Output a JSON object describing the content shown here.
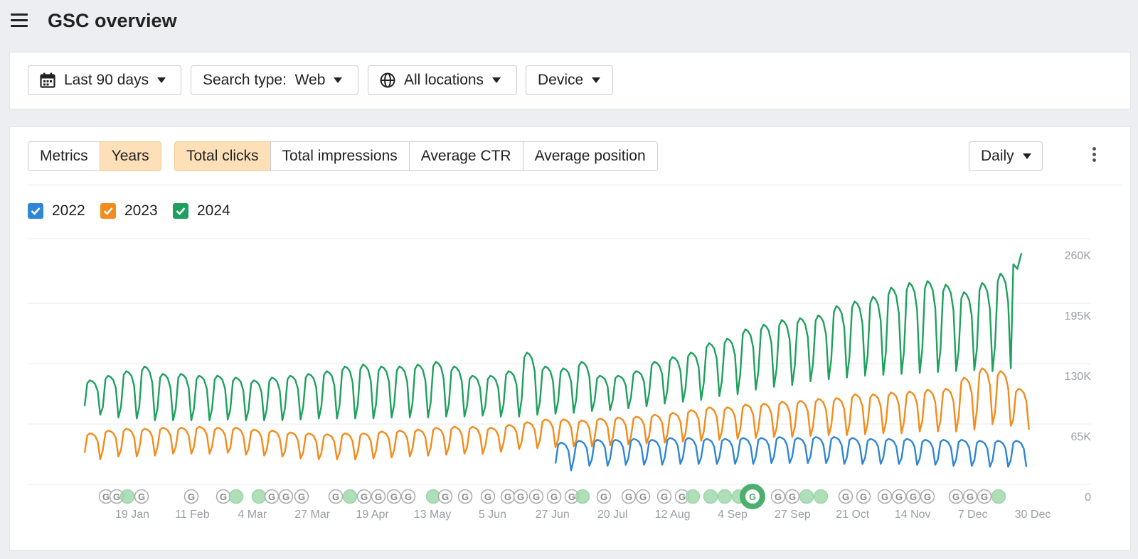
{
  "header": {
    "title": "GSC overview"
  },
  "filters": {
    "date_range": "Last 90 days",
    "search_type": "Search type:  Web",
    "locations": "All locations",
    "device": "Device"
  },
  "mode_tabs": [
    {
      "label": "Metrics",
      "active": false
    },
    {
      "label": "Years",
      "active": true
    }
  ],
  "metric_tabs": [
    {
      "label": "Total clicks",
      "active": true
    },
    {
      "label": "Total impressions",
      "active": false
    },
    {
      "label": "Average CTR",
      "active": false
    },
    {
      "label": "Average position",
      "active": false
    }
  ],
  "interval": "Daily",
  "icons": {
    "menu": "hamburger-icon",
    "calendar": "calendar-icon",
    "globe": "globe-icon",
    "more": "kebab-icon",
    "caret": "caret-down-icon",
    "annotation": "google-update-icon"
  },
  "chart_data": {
    "type": "line",
    "x_ticks": [
      "19 Jan",
      "11 Feb",
      "4 Mar",
      "27 Mar",
      "19 Apr",
      "13 May",
      "5 Jun",
      "27 Jun",
      "20 Jul",
      "12 Aug",
      "4 Sep",
      "27 Sep",
      "21 Oct",
      "14 Nov",
      "7 Dec",
      "30 Dec"
    ],
    "y_ticks": [
      "260K",
      "195K",
      "130K",
      "65K",
      "0"
    ],
    "ylim": [
      0,
      260000
    ],
    "grid": true,
    "legend_position": "top-left",
    "series": [
      {
        "name": "2022",
        "color": "#2f86d4",
        "start_day": 181,
        "weekly_peak_k": [
          58,
          60,
          61,
          61,
          62,
          61,
          63,
          63,
          62,
          62,
          63,
          63,
          64,
          63,
          64,
          64,
          63,
          62,
          62,
          62,
          61,
          61,
          61,
          60,
          60,
          60
        ],
        "weekly_trough_k": [
          28,
          33,
          33,
          34,
          34,
          34,
          35,
          35,
          35,
          35,
          35,
          36,
          36,
          36,
          36,
          35,
          35,
          35,
          35,
          34,
          34,
          33,
          33,
          32,
          32,
          32
        ]
      },
      {
        "name": "2023",
        "color": "#f28c1c",
        "start_day": 0,
        "weekly_peak_k": [
          68,
          71,
          73,
          73,
          74,
          74,
          75,
          74,
          74,
          72,
          71,
          69,
          68,
          67,
          68,
          68,
          70,
          71,
          72,
          74,
          75,
          75,
          74,
          77,
          80,
          83,
          83,
          82,
          84,
          85,
          86,
          88,
          90,
          93,
          96,
          96,
          99,
          100,
          102,
          103,
          105,
          106,
          110,
          110,
          112,
          113,
          115,
          116,
          128,
          138,
          135,
          116
        ],
        "weekly_trough_k": [
          40,
          43,
          43,
          44,
          46,
          46,
          46,
          47,
          45,
          44,
          43,
          41,
          40,
          40,
          40,
          41,
          42,
          43,
          44,
          45,
          46,
          46,
          48,
          51,
          52,
          53,
          54,
          54,
          55,
          56,
          57,
          58,
          59,
          60,
          61,
          62,
          63,
          64,
          64,
          65,
          66,
          66,
          67,
          68,
          68,
          70,
          70,
          70,
          72,
          78,
          76,
          72
        ]
      },
      {
        "name": "2024",
        "color": "#1fa05e",
        "start_day": 0,
        "weekly_peak_k": [
          125,
          130,
          135,
          140,
          132,
          132,
          130,
          130,
          128,
          125,
          128,
          130,
          132,
          135,
          140,
          142,
          140,
          140,
          142,
          145,
          140,
          130,
          130,
          135,
          155,
          140,
          138,
          145,
          130,
          130,
          135,
          145,
          150,
          155,
          165,
          170,
          180,
          185,
          190,
          192,
          195,
          205,
          210,
          215,
          225,
          230,
          232,
          228,
          220,
          230,
          240
        ],
        "weekly_trough_k": [
          88,
          85,
          84,
          82,
          82,
          82,
          82,
          83,
          82,
          82,
          82,
          83,
          84,
          84,
          84,
          84,
          85,
          85,
          85,
          86,
          86,
          87,
          86,
          86,
          88,
          89,
          90,
          92,
          93,
          95,
          97,
          100,
          102,
          104,
          108,
          110,
          115,
          118,
          120,
          124,
          126,
          128,
          130,
          131,
          132,
          133,
          134,
          135,
          136,
          135,
          138
        ],
        "final_points_k": [
          250,
          245,
          262
        ]
      }
    ]
  }
}
